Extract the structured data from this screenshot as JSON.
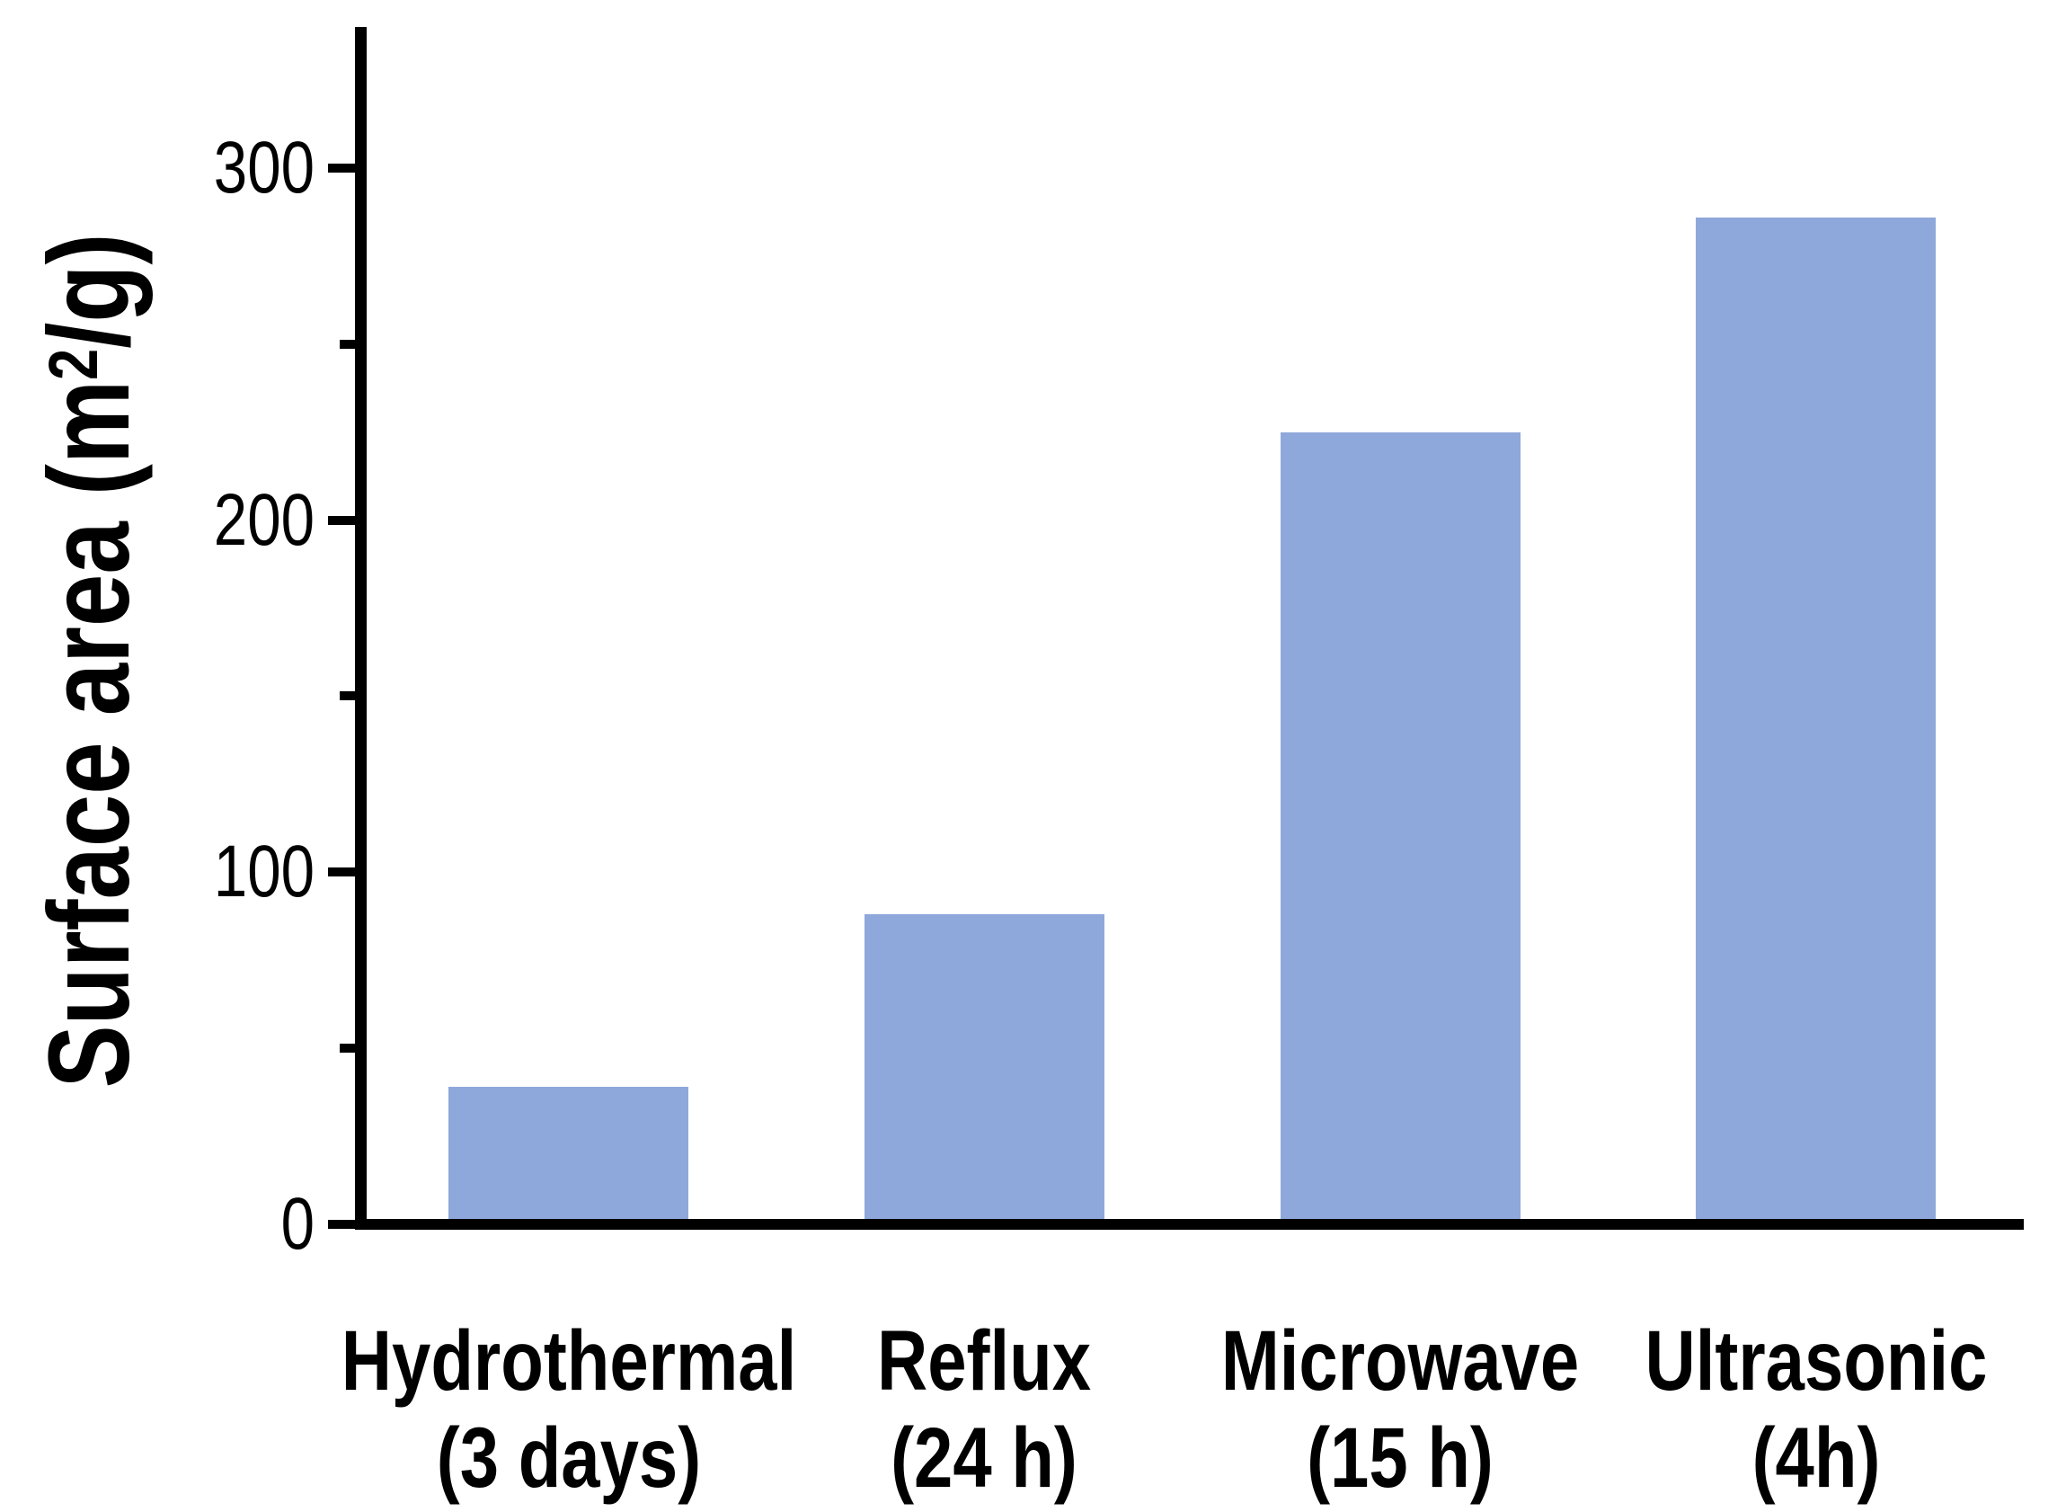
{
  "chart_data": {
    "type": "bar",
    "title": "",
    "xlabel": "",
    "ylabel": "Surface area (m²/g)",
    "ylabel_parts": {
      "pre": "Surface area (m",
      "sup": "2",
      "post": "/g)"
    },
    "categories": [
      {
        "line1": "Hydrothermal",
        "line2": "(3 days)"
      },
      {
        "line1": "Reflux",
        "line2": "(24 h)"
      },
      {
        "line1": "Microwave",
        "line2": "(15 h)"
      },
      {
        "line1": "Ultrasonic",
        "line2": "(4h)"
      }
    ],
    "values": [
      39,
      88,
      225,
      286
    ],
    "yticks": [
      {
        "value": 0,
        "label": "0"
      },
      {
        "value": 100,
        "label": "100"
      },
      {
        "value": 200,
        "label": "200"
      },
      {
        "value": 300,
        "label": "300"
      }
    ],
    "minor_yticks": [
      50,
      150,
      250
    ],
    "ylim": [
      0,
      340
    ],
    "grid": false,
    "legend": false,
    "bar_color": "#8FA8DB",
    "axis_color": "#000000",
    "background_color": "#FFFFFF"
  }
}
